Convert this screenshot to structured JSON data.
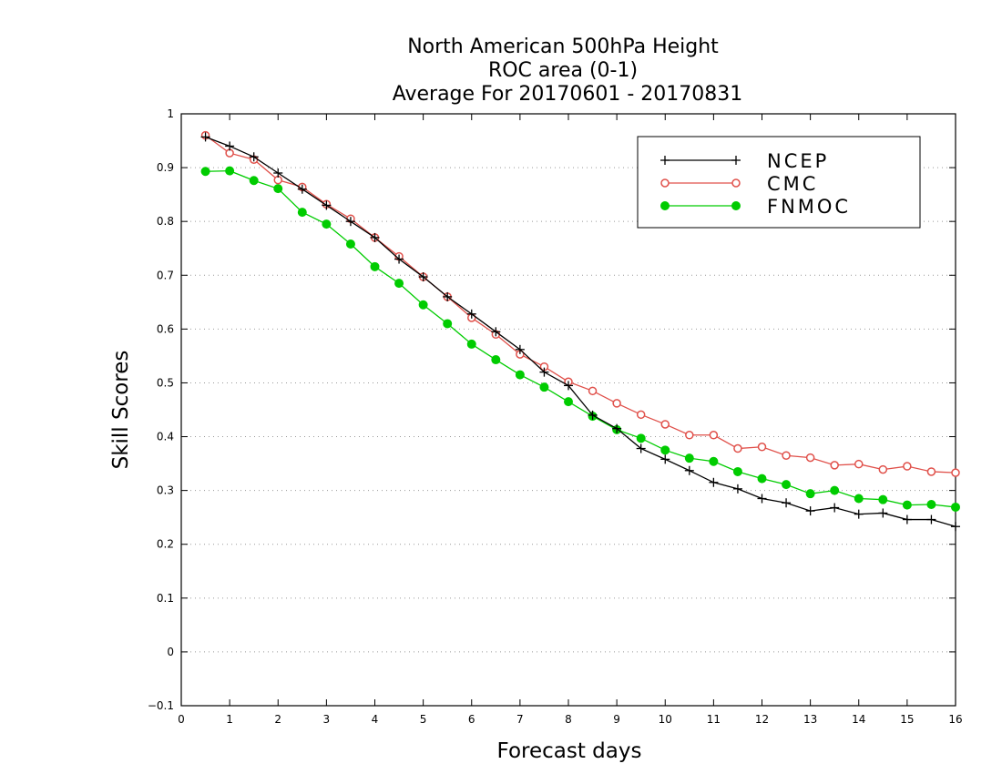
{
  "chart_data": {
    "type": "line",
    "title": [
      "North American 500hPa Height",
      "ROC area (0-1)",
      "Average For 20170601 - 20170831"
    ],
    "xlabel": "Forecast days",
    "ylabel": "Skill Scores",
    "xlim": [
      0,
      16
    ],
    "ylim": [
      -0.1,
      1
    ],
    "xticks": [
      "0",
      "1",
      "2",
      "3",
      "4",
      "5",
      "6",
      "7",
      "8",
      "9",
      "10",
      "11",
      "12",
      "13",
      "14",
      "15",
      "16"
    ],
    "yticks": [
      "−0.1",
      "0",
      "0.1",
      "0.2",
      "0.3",
      "0.4",
      "0.5",
      "0.6",
      "0.7",
      "0.8",
      "0.9",
      "1"
    ],
    "grid": "horizontal dotted",
    "legend_position": "top-right",
    "x": [
      0.5,
      1,
      1.5,
      2,
      2.5,
      3,
      3.5,
      4,
      4.5,
      5,
      5.5,
      6,
      6.5,
      7,
      7.5,
      8,
      8.5,
      9,
      9.5,
      10,
      10.5,
      11,
      11.5,
      12,
      12.5,
      13,
      13.5,
      14,
      14.5,
      15,
      15.5,
      16
    ],
    "series": [
      {
        "name": "NCEP",
        "color": "#000000",
        "marker": "plus",
        "values": [
          0.957,
          0.94,
          0.92,
          0.89,
          0.86,
          0.83,
          0.8,
          0.77,
          0.73,
          0.697,
          0.66,
          0.628,
          0.595,
          0.562,
          0.52,
          0.495,
          0.44,
          0.415,
          0.378,
          0.358,
          0.337,
          0.315,
          0.303,
          0.285,
          0.277,
          0.262,
          0.268,
          0.256,
          0.258,
          0.246,
          0.246,
          0.233
        ]
      },
      {
        "name": "CMC",
        "color": "#e0504a",
        "marker": "open-circle",
        "values": [
          0.96,
          0.927,
          0.915,
          0.877,
          0.864,
          0.832,
          0.805,
          0.77,
          0.735,
          0.697,
          0.66,
          0.621,
          0.59,
          0.553,
          0.53,
          0.502,
          0.485,
          0.462,
          0.441,
          0.423,
          0.403,
          0.403,
          0.378,
          0.381,
          0.365,
          0.361,
          0.347,
          0.349,
          0.339,
          0.345,
          0.335,
          0.333
        ]
      },
      {
        "name": "FNMOC",
        "color": "#00cc00",
        "marker": "filled-circle",
        "values": [
          0.893,
          0.894,
          0.876,
          0.861,
          0.817,
          0.795,
          0.758,
          0.716,
          0.685,
          0.645,
          0.61,
          0.572,
          0.543,
          0.515,
          0.492,
          0.465,
          0.438,
          0.413,
          0.397,
          0.375,
          0.36,
          0.354,
          0.335,
          0.322,
          0.311,
          0.294,
          0.3,
          0.285,
          0.283,
          0.273,
          0.274,
          0.269
        ]
      }
    ]
  }
}
